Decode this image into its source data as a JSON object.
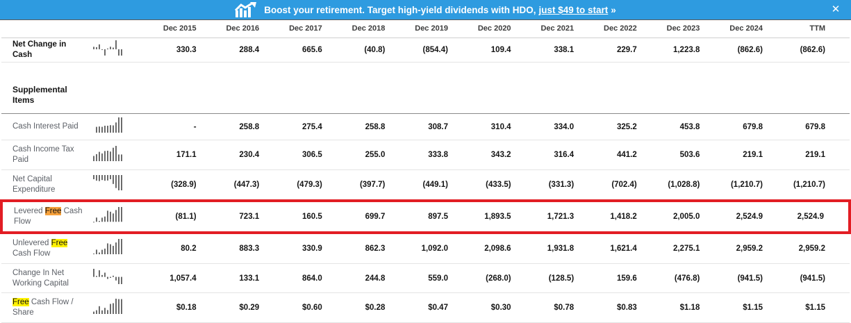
{
  "colors": {
    "banner_bg": "#2e9be0",
    "red_box": "#e21d24",
    "highlight_orange": "#f6a13b",
    "highlight_yellow": "#fff200"
  },
  "banner": {
    "icon": "chart-up-icon",
    "text": "Boost your retirement. Target high-yield dividends with HDO,",
    "link": "just $49 to start",
    "arrow": "»",
    "close": "✕"
  },
  "table": {
    "columns": [
      "Dec 2015",
      "Dec 2016",
      "Dec 2017",
      "Dec 2018",
      "Dec 2019",
      "Dec 2020",
      "Dec 2021",
      "Dec 2022",
      "Dec 2023",
      "Dec 2024",
      "TTM"
    ],
    "rows": [
      {
        "type": "data",
        "emphasis": true,
        "label": [
          {
            "t": "Net Change in Cash"
          }
        ],
        "values": [
          "330.3",
          "288.4",
          "665.6",
          "(40.8)",
          "(854.4)",
          "109.4",
          "338.1",
          "229.7",
          "1,223.8",
          "(862.6)",
          "(862.6)"
        ]
      },
      {
        "type": "spacer"
      },
      {
        "type": "heading",
        "label": [
          {
            "t": "Supplemental Items"
          }
        ]
      },
      {
        "type": "data",
        "label": [
          {
            "t": "Cash Interest Paid"
          }
        ],
        "values": [
          "-",
          "258.8",
          "275.4",
          "258.8",
          "308.7",
          "310.4",
          "334.0",
          "325.2",
          "453.8",
          "679.8",
          "679.8"
        ]
      },
      {
        "type": "data",
        "label": [
          {
            "t": "Cash Income Tax Paid"
          }
        ],
        "values": [
          "171.1",
          "230.4",
          "306.5",
          "255.0",
          "333.8",
          "343.2",
          "316.4",
          "441.2",
          "503.6",
          "219.1",
          "219.1"
        ]
      },
      {
        "type": "data",
        "label": [
          {
            "t": "Net Capital Expenditure"
          }
        ],
        "values": [
          "(328.9)",
          "(447.3)",
          "(479.3)",
          "(397.7)",
          "(449.1)",
          "(433.5)",
          "(331.3)",
          "(702.4)",
          "(1,028.8)",
          "(1,210.7)",
          "(1,210.7)"
        ]
      },
      {
        "type": "data",
        "red_box": true,
        "label": [
          {
            "t": "Levered "
          },
          {
            "t": "Free",
            "hl": "orange"
          },
          {
            "t": " Cash Flow"
          }
        ],
        "values": [
          "(81.1)",
          "723.1",
          "160.5",
          "699.7",
          "897.5",
          "1,893.5",
          "1,721.3",
          "1,418.2",
          "2,005.0",
          "2,524.9",
          "2,524.9"
        ]
      },
      {
        "type": "data",
        "label": [
          {
            "t": "Unlevered "
          },
          {
            "t": "Free",
            "hl": "yellow"
          },
          {
            "t": " Cash Flow"
          }
        ],
        "values": [
          "80.2",
          "883.3",
          "330.9",
          "862.3",
          "1,092.0",
          "2,098.6",
          "1,931.8",
          "1,621.4",
          "2,275.1",
          "2,959.2",
          "2,959.2"
        ]
      },
      {
        "type": "data",
        "label": [
          {
            "t": "Change In Net Working Capital"
          }
        ],
        "values": [
          "1,057.4",
          "133.1",
          "864.0",
          "244.8",
          "559.0",
          "(268.0)",
          "(128.5)",
          "159.6",
          "(476.8)",
          "(941.5)",
          "(941.5)"
        ]
      },
      {
        "type": "data",
        "label": [
          {
            "t": "Free",
            "hl": "yellow"
          },
          {
            "t": " Cash Flow / Share"
          }
        ],
        "values": [
          "$0.18",
          "$0.29",
          "$0.60",
          "$0.28",
          "$0.47",
          "$0.30",
          "$0.78",
          "$0.83",
          "$1.18",
          "$1.15",
          "$1.15"
        ]
      }
    ]
  }
}
